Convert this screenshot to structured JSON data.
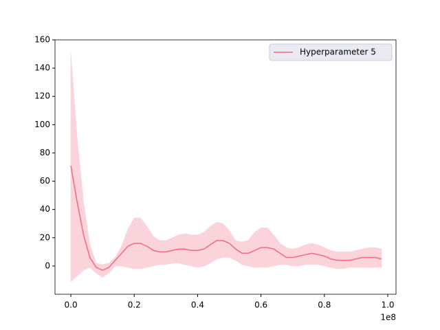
{
  "chart_data": {
    "type": "line",
    "x": [
      0,
      2000000,
      4000000,
      6000000,
      8000000,
      10000000,
      12000000,
      14000000,
      16000000,
      18000000,
      20000000,
      22000000,
      24000000,
      26000000,
      28000000,
      30000000,
      32000000,
      34000000,
      36000000,
      38000000,
      40000000,
      42000000,
      44000000,
      46000000,
      48000000,
      50000000,
      52000000,
      54000000,
      56000000,
      58000000,
      60000000,
      62000000,
      64000000,
      66000000,
      68000000,
      70000000,
      72000000,
      74000000,
      76000000,
      78000000,
      80000000,
      82000000,
      84000000,
      86000000,
      88000000,
      90000000,
      92000000,
      94000000,
      96000000,
      98000000
    ],
    "series": [
      {
        "name": "Hyperparameter 5",
        "color": "#f16a82",
        "band_color": "#fbd3da",
        "values": [
          71,
          45,
          22,
          6,
          -1,
          -3,
          -1,
          4,
          9,
          14,
          16,
          16,
          14,
          11,
          10,
          10,
          11,
          12,
          12,
          11,
          11,
          12,
          15,
          18,
          18,
          16,
          12,
          9,
          9,
          11,
          13,
          13,
          12,
          9,
          6,
          6,
          7,
          8,
          9,
          8,
          7,
          5,
          4,
          4,
          4,
          5,
          6,
          6,
          6,
          5
        ],
        "upper": [
          150,
          90,
          45,
          15,
          2,
          1,
          2,
          6,
          14,
          26,
          34,
          34,
          28,
          21,
          18,
          18,
          20,
          22,
          23,
          22,
          22,
          24,
          28,
          31,
          30,
          25,
          18,
          17,
          18,
          24,
          27,
          27,
          22,
          16,
          13,
          12,
          13,
          15,
          16,
          15,
          13,
          11,
          10,
          10,
          10,
          11,
          12,
          13,
          13,
          12
        ],
        "lower": [
          -11,
          -7,
          -3,
          -1,
          -5,
          -8,
          -5,
          0,
          0,
          -1,
          -2,
          -2,
          -1,
          0,
          1,
          1,
          2,
          2,
          1,
          0,
          -1,
          0,
          2,
          5,
          6,
          6,
          4,
          1,
          0,
          -1,
          -1,
          -1,
          0,
          1,
          1,
          0,
          0,
          1,
          1,
          1,
          0,
          -1,
          -2,
          -2,
          -1,
          -1,
          -1,
          -1,
          -1,
          -1
        ]
      }
    ],
    "xlim": [
      -5000000,
      102600000
    ],
    "xticks": [
      {
        "value": 0,
        "label": "0.0"
      },
      {
        "value": 20000000,
        "label": "0.2"
      },
      {
        "value": 40000000,
        "label": "0.4"
      },
      {
        "value": 60000000,
        "label": "0.6"
      },
      {
        "value": 80000000,
        "label": "0.8"
      },
      {
        "value": 100000000,
        "label": "1.0"
      }
    ],
    "x_offset_label": "1e8",
    "ylim": [
      -20,
      160
    ],
    "yticks": [
      0,
      20,
      40,
      60,
      80,
      100,
      120,
      140,
      160
    ],
    "legend": "upper right"
  }
}
